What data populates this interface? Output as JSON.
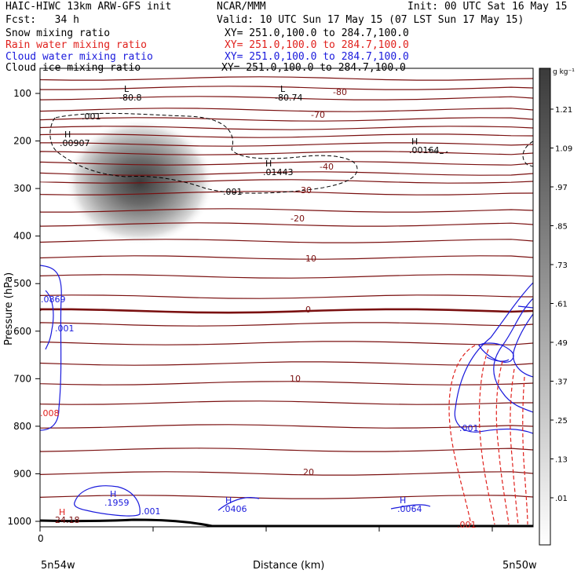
{
  "header": {
    "left_title": "HAIC-HIWC 13km ARW-GFS init",
    "center_title": "NCAR/MMM",
    "init": "Init: 00 UTC Sat 16 May 15",
    "fcst": "Fcst:   34 h",
    "valid": "Valid: 10 UTC Sun 17 May 15 (07 LST Sun 17 May 15)"
  },
  "fields": [
    {
      "name": "Snow mixing ratio",
      "xy": "XY= 251.0,100.0 to 284.7,100.0",
      "color": "#000000"
    },
    {
      "name": "Rain water mixing ratio",
      "xy": "XY= 251.0,100.0 to 284.7,100.0",
      "color": "#e0201c"
    },
    {
      "name": "Cloud water mixing ratio",
      "xy": "XY= 251.0,100.0 to 284.7,100.0",
      "color": "#1a1adc"
    },
    {
      "name": "Cloud ice mixing ratio",
      "xy": "XY= 251.0,100.0 to 284.7,100.0",
      "color": "#000000"
    }
  ],
  "chart_data": {
    "type": "contour",
    "ylabel": "Pressure (hPa)",
    "xlabel": "Distance (km)",
    "y_ticks": [
      100,
      200,
      300,
      400,
      500,
      600,
      700,
      800,
      900,
      1000
    ],
    "x_tick_label": "0",
    "left_endpoint": "5n54w",
    "right_endpoint": "5n50w",
    "colorbar": {
      "unit": "g kg⁻¹",
      "labels": [
        "1.21",
        "1.09",
        ".97",
        ".85",
        ".73",
        ".61",
        ".49",
        ".37",
        ".25",
        ".13",
        ".01"
      ]
    },
    "temperature_contour_labels": [
      "-80",
      "-70",
      "-40",
      "-30",
      "-20",
      "-10",
      "0",
      "10",
      "20"
    ],
    "extrema_labels": [
      {
        "type": "L",
        "value": "-80.8"
      },
      {
        "type": "L",
        "value": "-80.74"
      },
      {
        "type": "H",
        "value": ".00907"
      },
      {
        "type": "H",
        "value": ".01443"
      },
      {
        "type": "H",
        "value": ".00164"
      },
      {
        "type": "H",
        "value": ".1959"
      },
      {
        "type": "H",
        "value": ".0406"
      },
      {
        "type": "H",
        "value": ".0064"
      },
      {
        "type": "H",
        "value": "24.18"
      }
    ],
    "contour_value_labels": [
      ".001",
      ".001",
      ".001",
      ".001",
      ".001",
      ".001",
      ".0869",
      ".008"
    ]
  }
}
